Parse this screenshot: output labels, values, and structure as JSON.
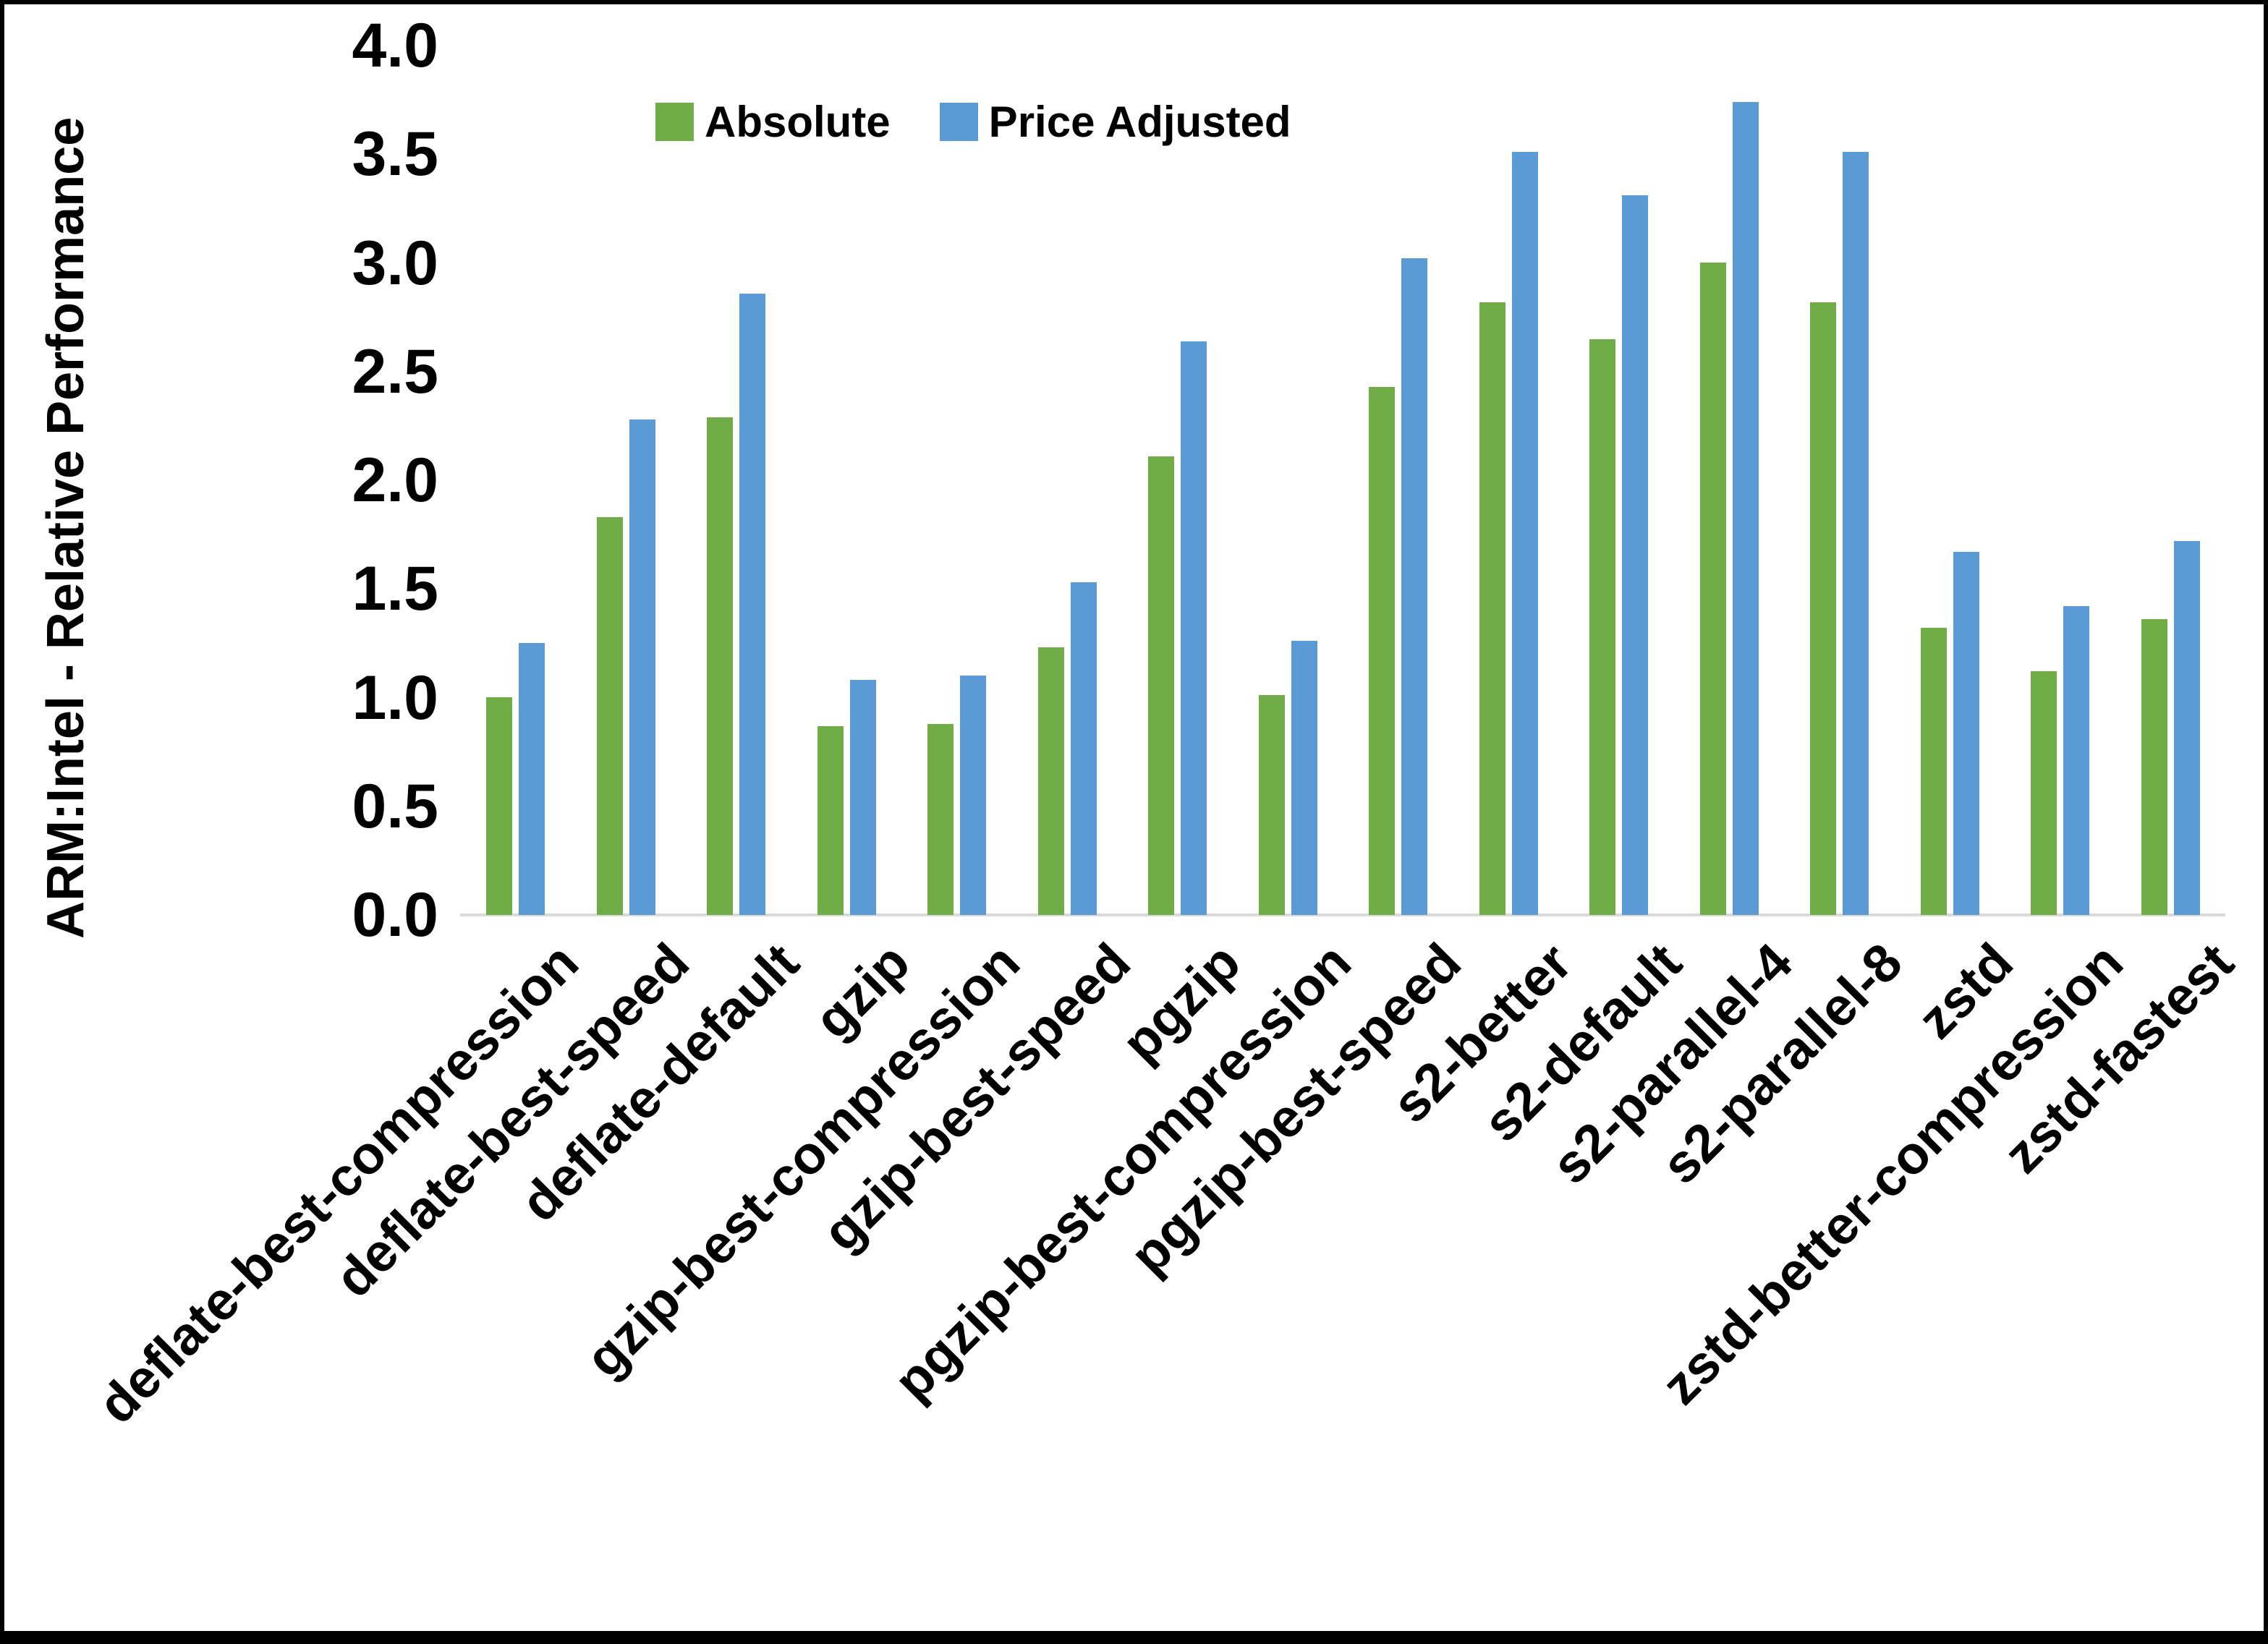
{
  "chart_data": {
    "type": "bar",
    "title": "",
    "y_title": "ARM:Intel - Relative Performance",
    "xlabel": "",
    "ylabel": "ARM:Intel - Relative Performance",
    "ylim": [
      0.0,
      4.0
    ],
    "ytick_step": 0.5,
    "ytick_labels": [
      "0.0",
      "0.5",
      "1.0",
      "1.5",
      "2.0",
      "2.5",
      "3.0",
      "3.5",
      "4.0"
    ],
    "grid": false,
    "legend_position": "top-center",
    "axis_line_color": "#D9D9D9",
    "categories": [
      "deflate-best-compression",
      "deflate-best-speed",
      "deflate-default",
      "gzip",
      "gzip-best-compression",
      "gzip-best-speed",
      "pgzip",
      "pgzip-best-compression",
      "pgzip-best-speed",
      "s2-better",
      "s2-default",
      "s2-parallel-4",
      "s2-parallel-8",
      "zstd",
      "zstd-better-compression",
      "zstd-fastest"
    ],
    "series": [
      {
        "name": "Absolute",
        "color": "#70AD47",
        "values": [
          1.0,
          1.83,
          2.29,
          0.87,
          0.88,
          1.23,
          2.11,
          1.01,
          2.43,
          2.82,
          2.65,
          3.0,
          2.82,
          1.32,
          1.12,
          1.36
        ]
      },
      {
        "name": "Price Adjusted",
        "color": "#5B9BD5",
        "values": [
          1.25,
          2.28,
          2.86,
          1.08,
          1.1,
          1.53,
          2.64,
          1.26,
          3.02,
          3.51,
          3.31,
          3.74,
          3.51,
          1.67,
          1.42,
          1.72
        ]
      }
    ]
  }
}
